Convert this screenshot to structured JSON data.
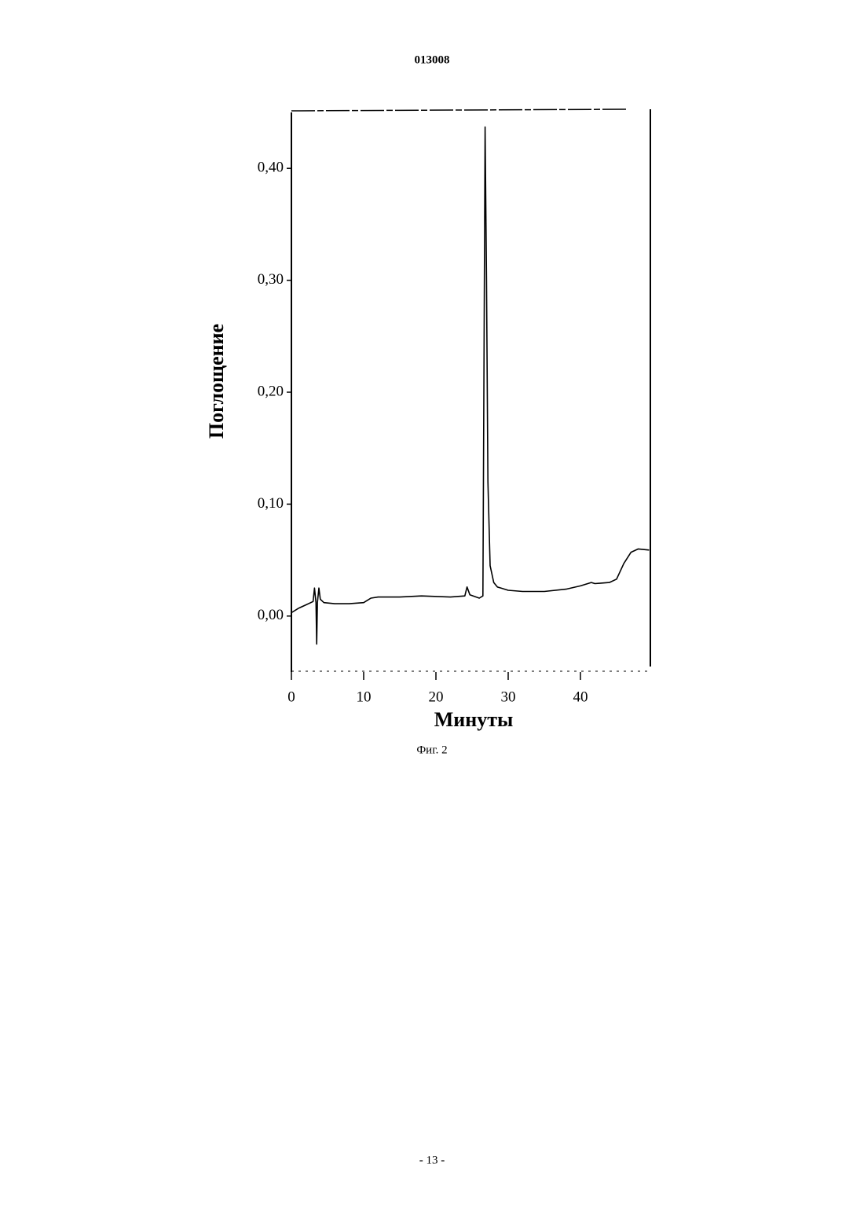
{
  "header": "013008",
  "chart_data": {
    "type": "line",
    "ylabel": "Поглощение",
    "xlabel": "Минуты",
    "caption": "Фиг. 2",
    "xlim": [
      0,
      50
    ],
    "ylim": [
      -0.05,
      0.45
    ],
    "xticks": [
      0,
      10,
      20,
      30,
      40
    ],
    "yticks": [
      {
        "value": 0,
        "label": "0,00"
      },
      {
        "value": 0.1,
        "label": "0,10"
      },
      {
        "value": 0.2,
        "label": "0,20"
      },
      {
        "value": 0.3,
        "label": "0,30"
      },
      {
        "value": 0.4,
        "label": "0,40"
      }
    ],
    "color": "#000000",
    "x": [
      0,
      1,
      2,
      3,
      3.2,
      3.4,
      3.5,
      3.6,
      3.8,
      4.0,
      4.5,
      6,
      8,
      10,
      11,
      12,
      15,
      18,
      22,
      24,
      24.3,
      24.7,
      26,
      26.5,
      26.8,
      27.0,
      27.2,
      27.5,
      28,
      28.5,
      30,
      32,
      35,
      38,
      40,
      41.5,
      42,
      44,
      45,
      46,
      47,
      48,
      49.5
    ],
    "values": [
      0.003,
      0.007,
      0.01,
      0.013,
      0.025,
      0.012,
      -0.025,
      0.012,
      0.025,
      0.015,
      0.012,
      0.011,
      0.011,
      0.012,
      0.016,
      0.017,
      0.017,
      0.018,
      0.017,
      0.018,
      0.026,
      0.019,
      0.016,
      0.018,
      0.437,
      0.3,
      0.12,
      0.045,
      0.03,
      0.026,
      0.023,
      0.022,
      0.022,
      0.024,
      0.027,
      0.03,
      0.029,
      0.03,
      0.033,
      0.047,
      0.057,
      0.06,
      0.059
    ]
  },
  "footer": "- 13 -"
}
